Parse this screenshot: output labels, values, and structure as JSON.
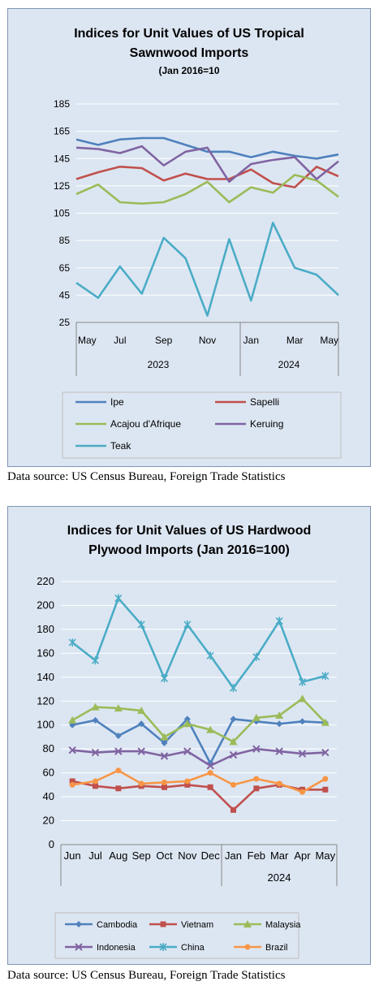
{
  "chart_data": [
    {
      "type": "line",
      "title_lines": [
        "Indices for Unit Values of US Tropical",
        "Sawnwood Imports"
      ],
      "subtitle": "(Jan 2016=10",
      "x": [
        "May 2023",
        "Jun 2023",
        "Jul 2023",
        "Aug 2023",
        "Sep 2023",
        "Oct 2023",
        "Nov 2023",
        "Dec 2023",
        "Jan 2024",
        "Feb 2024",
        "Mar 2024",
        "Apr 2024",
        "May 2024"
      ],
      "x_tick_labels": [
        "May",
        "",
        "Jul",
        "",
        "Sep",
        "",
        "Nov",
        "",
        "Jan",
        "",
        "Mar",
        "",
        "May"
      ],
      "year_labels": [
        "2023",
        "2024"
      ],
      "ylim": [
        25,
        185
      ],
      "y_ticks": [
        25,
        45,
        65,
        85,
        105,
        125,
        145,
        165,
        185
      ],
      "grid": true,
      "legend_position": "bottom",
      "series": [
        {
          "name": "Ipe",
          "color": "#4f81bd",
          "values": [
            159,
            155,
            159,
            160,
            160,
            155,
            150,
            150,
            146,
            150,
            147,
            145,
            148
          ]
        },
        {
          "name": "Sapelli",
          "color": "#c0504d",
          "values": [
            130,
            135,
            139,
            138,
            129,
            134,
            130,
            130,
            137,
            127,
            124,
            139,
            132
          ]
        },
        {
          "name": "Acajou d'Afrique",
          "color": "#9bbb59",
          "values": [
            119,
            126,
            113,
            112,
            113,
            119,
            128,
            113,
            124,
            120,
            133,
            129,
            117
          ]
        },
        {
          "name": "Keruing",
          "color": "#8064a2",
          "values": [
            153,
            152,
            149,
            154,
            140,
            150,
            153,
            128,
            141,
            144,
            146,
            130,
            143
          ]
        },
        {
          "name": "Teak",
          "color": "#4bacc6",
          "values": [
            54,
            43,
            66,
            46,
            87,
            72,
            30,
            86,
            41,
            98,
            65,
            60,
            45
          ]
        }
      ]
    },
    {
      "type": "line",
      "title_lines": [
        "Indices for Unit Values of US Hardwood",
        "Plywood Imports (Jan 2016=100)"
      ],
      "x": [
        "Jun 2023",
        "Jul 2023",
        "Aug 2023",
        "Sep 2023",
        "Oct 2023",
        "Nov 2023",
        "Dec 2023",
        "Jan 2024",
        "Feb 2024",
        "Mar 2024",
        "Apr 2024",
        "May 2024"
      ],
      "x_tick_labels": [
        "Jun",
        "Jul",
        "Aug",
        "Sep",
        "Oct",
        "Nov",
        "Dec",
        "Jan",
        "Feb",
        "Mar",
        "Apr",
        "May"
      ],
      "year_labels": [
        "2024"
      ],
      "ylim": [
        0,
        220
      ],
      "y_ticks": [
        0,
        20,
        40,
        60,
        80,
        100,
        120,
        140,
        160,
        180,
        200,
        220
      ],
      "grid": true,
      "legend_position": "bottom",
      "series": [
        {
          "name": "Cambodia",
          "color": "#4f81bd",
          "marker": "diamond",
          "values": [
            100,
            104,
            91,
            101,
            85,
            105,
            68,
            105,
            103,
            101,
            103,
            102
          ]
        },
        {
          "name": "Vietnam",
          "color": "#c0504d",
          "marker": "square",
          "values": [
            53,
            49,
            47,
            49,
            48,
            50,
            48,
            29,
            47,
            50,
            46,
            46
          ]
        },
        {
          "name": "Malaysia",
          "color": "#9bbb59",
          "marker": "triangle",
          "values": [
            104,
            115,
            114,
            112,
            90,
            101,
            96,
            86,
            106,
            108,
            122,
            102
          ]
        },
        {
          "name": "Indonesia",
          "color": "#8064a2",
          "marker": "x",
          "values": [
            79,
            77,
            78,
            78,
            74,
            78,
            66,
            75,
            80,
            78,
            76,
            77
          ]
        },
        {
          "name": "China",
          "color": "#4bacc6",
          "marker": "star",
          "values": [
            169,
            154,
            206,
            184,
            139,
            184,
            158,
            131,
            157,
            187,
            136,
            141
          ]
        },
        {
          "name": "Brazil",
          "color": "#f79646",
          "marker": "circle",
          "values": [
            50,
            53,
            62,
            51,
            52,
            53,
            60,
            50,
            55,
            51,
            44,
            55
          ]
        }
      ]
    }
  ],
  "sources": [
    "Data source: US Census Bureau, Foreign Trade Statistics",
    "Data source: US Census Bureau, Foreign Trade Statistics"
  ]
}
